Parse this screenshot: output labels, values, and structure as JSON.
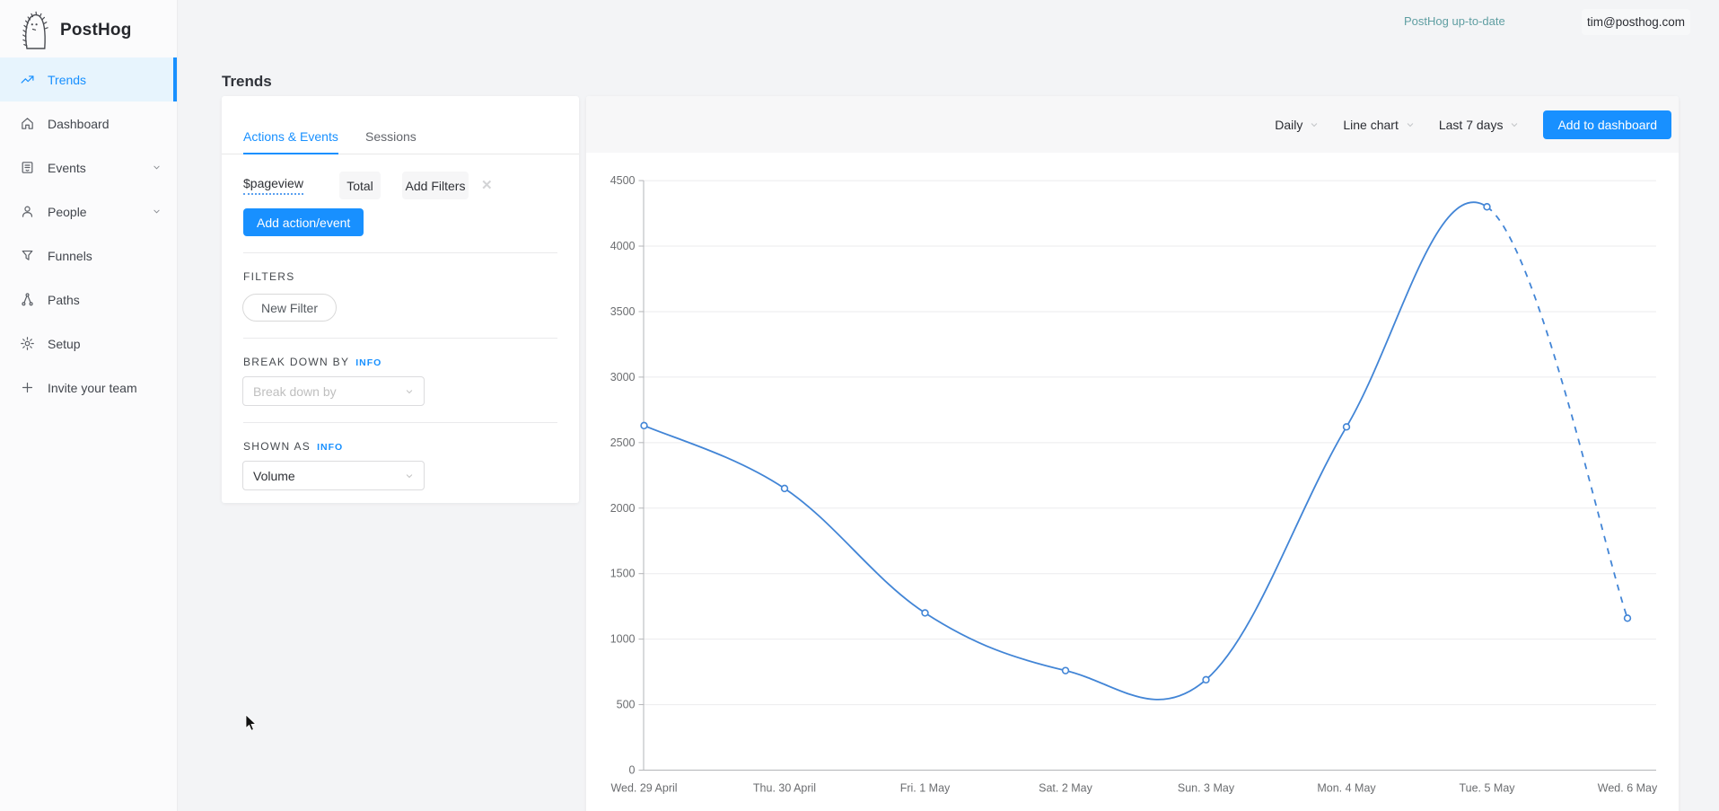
{
  "brand": {
    "name": "PostHog"
  },
  "topbar": {
    "status_text": "PostHog up-to-date",
    "user_email": "tim@posthog.com"
  },
  "sidebar": {
    "items": [
      {
        "label": "Trends",
        "icon": "trends-icon",
        "active": true,
        "chevron": false
      },
      {
        "label": "Dashboard",
        "icon": "dashboard-icon",
        "active": false,
        "chevron": false
      },
      {
        "label": "Events",
        "icon": "events-icon",
        "active": false,
        "chevron": true
      },
      {
        "label": "People",
        "icon": "people-icon",
        "active": false,
        "chevron": true
      },
      {
        "label": "Funnels",
        "icon": "funnels-icon",
        "active": false,
        "chevron": false
      },
      {
        "label": "Paths",
        "icon": "paths-icon",
        "active": false,
        "chevron": false
      },
      {
        "label": "Setup",
        "icon": "setup-icon",
        "active": false,
        "chevron": false
      },
      {
        "label": "Invite your team",
        "icon": "plus-icon",
        "active": false,
        "chevron": false
      }
    ]
  },
  "page": {
    "title": "Trends"
  },
  "query_panel": {
    "tabs": [
      {
        "label": "Actions & Events",
        "active": true
      },
      {
        "label": "Sessions",
        "active": false
      }
    ],
    "event_row": {
      "event_name": "$pageview",
      "math_label": "Total",
      "add_filters_label": "Add Filters",
      "remove_glyph": "✕"
    },
    "add_action_button": "Add action/event",
    "filters_section": {
      "heading": "FILTERS",
      "new_filter_button": "New Filter"
    },
    "breakdown_section": {
      "heading": "BREAK DOWN BY",
      "info_label": "INFO",
      "placeholder": "Break down by"
    },
    "shown_as_section": {
      "heading": "SHOWN AS",
      "info_label": "INFO",
      "value": "Volume"
    }
  },
  "chart_panel": {
    "interval_select": "Daily",
    "chart_type_select": "Line chart",
    "date_range_select": "Last 7 days",
    "add_to_dashboard_button": "Add to dashboard"
  },
  "chart_data": {
    "type": "line",
    "title": "",
    "categories": [
      "Wed. 29 April",
      "Thu. 30 April",
      "Fri. 1 May",
      "Sat. 2 May",
      "Sun. 3 May",
      "Mon. 4 May",
      "Tue. 5 May",
      "Wed. 6 May"
    ],
    "series": [
      {
        "name": "$pageview",
        "values": [
          2630,
          2150,
          1200,
          760,
          690,
          2620,
          4300,
          1160
        ]
      }
    ],
    "ylim": [
      0,
      4500
    ],
    "ytick_step": 500,
    "grid": true,
    "legend": "none",
    "dashed_from_index": 6,
    "line_color": "#4285d6",
    "point_fill": "#ffffff",
    "axis_color": "#b3b5b8",
    "grid_color": "#ebebed",
    "tick_label_color": "#6b6d70"
  },
  "colors": {
    "accent": "#1890ff",
    "status_text": "#5f9ea2"
  }
}
